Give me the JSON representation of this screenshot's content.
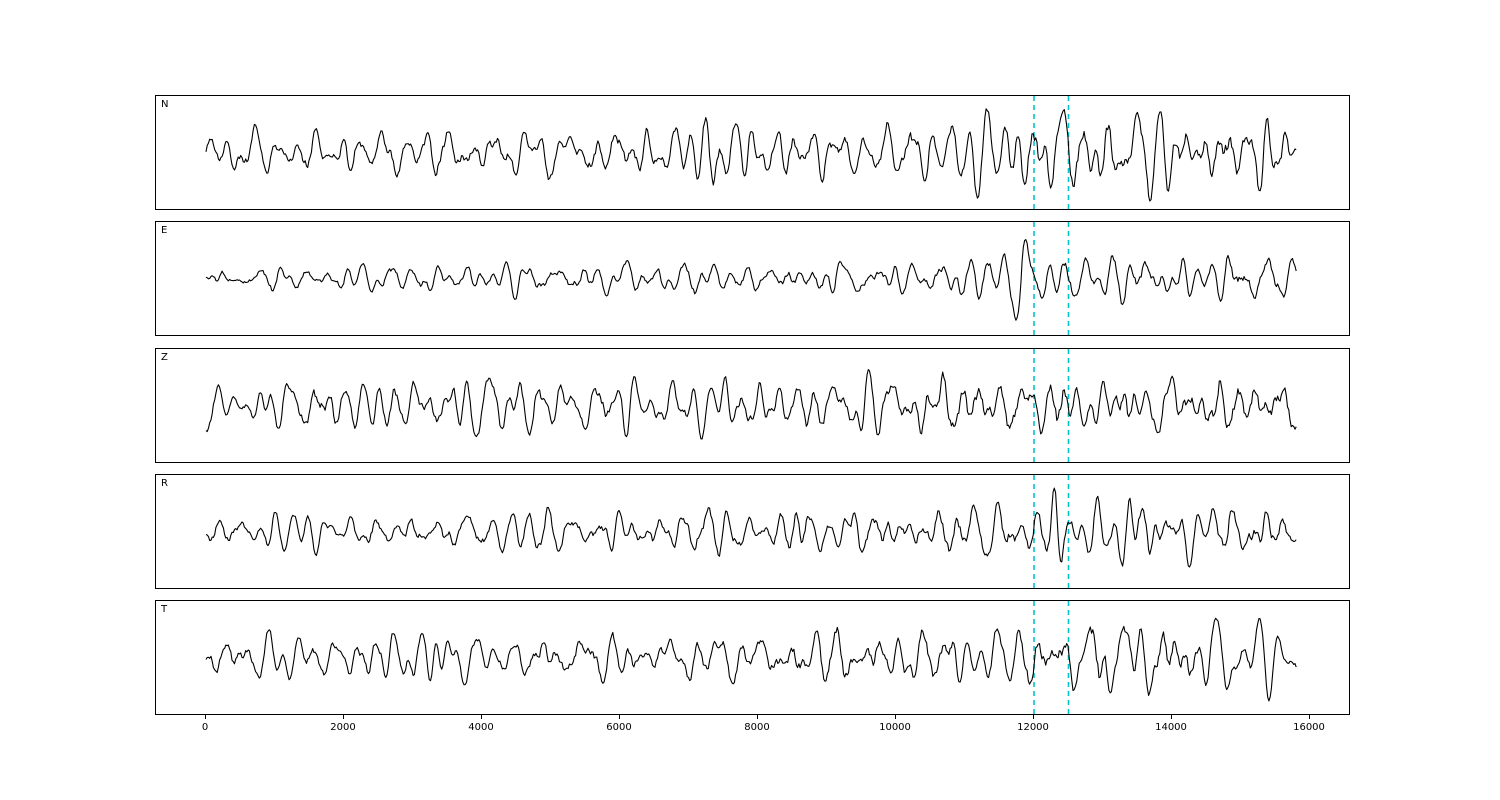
{
  "chart_data": {
    "type": "line",
    "title": "",
    "xlabel": "",
    "ylabel": "",
    "x_range": [
      0,
      16000
    ],
    "trace_x_end": 15800,
    "xticks": [
      0,
      2000,
      4000,
      6000,
      8000,
      10000,
      12000,
      14000,
      16000
    ],
    "grid": false,
    "legend": "none",
    "line_color": "#000000",
    "vlines": {
      "positions": [
        12000,
        12500
      ],
      "color": "#00c5cd",
      "style": "dashed"
    },
    "series": [
      {
        "name": "N",
        "seed": 1101,
        "envelope": [
          [
            0,
            0.55
          ],
          [
            5000,
            0.6
          ],
          [
            7800,
            0.85
          ],
          [
            9000,
            0.72
          ],
          [
            11500,
            0.9
          ],
          [
            12800,
            1.0
          ],
          [
            13600,
            0.95
          ],
          [
            15800,
            0.9
          ]
        ]
      },
      {
        "name": "E",
        "seed": 2202,
        "envelope": [
          [
            0,
            0.4
          ],
          [
            4000,
            0.5
          ],
          [
            8000,
            0.6
          ],
          [
            11500,
            0.7
          ],
          [
            12200,
            1.0
          ],
          [
            12700,
            0.7
          ],
          [
            13400,
            1.0
          ],
          [
            14200,
            0.75
          ],
          [
            15800,
            0.8
          ]
        ]
      },
      {
        "name": "Z",
        "seed": 3303,
        "envelope": [
          [
            0,
            0.5
          ],
          [
            3500,
            0.72
          ],
          [
            6000,
            0.65
          ],
          [
            9000,
            0.7
          ],
          [
            12300,
            0.9
          ],
          [
            13500,
            0.8
          ],
          [
            14800,
            1.0
          ],
          [
            15800,
            0.95
          ]
        ]
      },
      {
        "name": "R",
        "seed": 4404,
        "envelope": [
          [
            0,
            0.42
          ],
          [
            5000,
            0.55
          ],
          [
            8500,
            0.65
          ],
          [
            11800,
            0.72
          ],
          [
            12300,
            1.0
          ],
          [
            13000,
            0.7
          ],
          [
            13500,
            1.0
          ],
          [
            14500,
            0.8
          ],
          [
            15800,
            0.85
          ]
        ]
      },
      {
        "name": "T",
        "seed": 5505,
        "envelope": [
          [
            0,
            0.55
          ],
          [
            4000,
            0.6
          ],
          [
            8000,
            0.75
          ],
          [
            10500,
            0.8
          ],
          [
            12500,
            0.95
          ],
          [
            13300,
            1.0
          ],
          [
            14500,
            0.8
          ],
          [
            15800,
            0.85
          ]
        ]
      }
    ]
  }
}
